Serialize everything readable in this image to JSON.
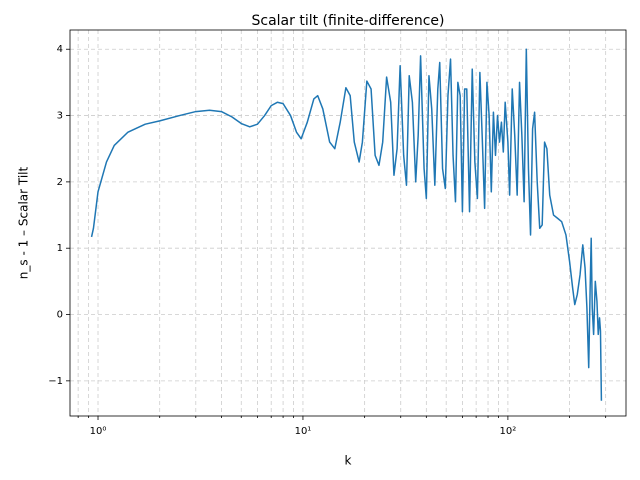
{
  "chart_data": {
    "type": "line",
    "title": "Scalar tilt (finite-difference)",
    "x_label": "k",
    "y_label": "n_s - 1 – Scalar Tilt",
    "xscale": "log",
    "grid": true,
    "color": "#1f77b4",
    "xlim": [
      0.73,
      377
    ],
    "ylim": [
      -1.53,
      4.29
    ],
    "xticks": [
      {
        "value": 1,
        "label": "10⁰"
      },
      {
        "value": 10,
        "label": "10¹"
      },
      {
        "value": 100,
        "label": "10²"
      }
    ],
    "xminorticks": [
      0.8,
      0.9,
      2,
      3,
      4,
      5,
      6,
      7,
      8,
      9,
      20,
      30,
      40,
      50,
      60,
      70,
      80,
      90,
      200,
      300
    ],
    "yticks": [
      {
        "value": -1,
        "label": "−1"
      },
      0,
      1,
      2,
      3,
      4
    ],
    "x": [
      0.93,
      0.95,
      1.0,
      1.1,
      1.2,
      1.4,
      1.7,
      2.0,
      2.5,
      3.0,
      3.5,
      4.0,
      4.5,
      5.0,
      5.5,
      6.0,
      6.5,
      7.0,
      7.5,
      8.0,
      8.7,
      9.3,
      9.8,
      10.5,
      11.3,
      11.8,
      12.5,
      13.5,
      14.3,
      15.2,
      16.2,
      17.0,
      17.8,
      18.8,
      19.5,
      20.5,
      21.5,
      22.5,
      23.5,
      24.5,
      25.6,
      26.8,
      27.8,
      28.8,
      29.8,
      31,
      32,
      33,
      34.2,
      35.5,
      36.5,
      37.5,
      39,
      40,
      41.2,
      42.5,
      44,
      45.5,
      46.5,
      48,
      49.5,
      51,
      52.5,
      54,
      55.5,
      57,
      58.5,
      60,
      61.5,
      63,
      65,
      67,
      69,
      71,
      73,
      75,
      77,
      79,
      81,
      83,
      85,
      87,
      89,
      91,
      93,
      95,
      97,
      100,
      102,
      105,
      108,
      111,
      114,
      117,
      120,
      123,
      126,
      129,
      132,
      135,
      139,
      143,
      147,
      151,
      155,
      160,
      167,
      175,
      183,
      192,
      200,
      207,
      212,
      218,
      225,
      232,
      238,
      243,
      248,
      252,
      255,
      258,
      262,
      267,
      272,
      276,
      280,
      283,
      286
    ],
    "values": [
      1.17,
      1.3,
      1.85,
      2.3,
      2.55,
      2.75,
      2.87,
      2.92,
      3.0,
      3.06,
      3.08,
      3.06,
      2.98,
      2.88,
      2.83,
      2.87,
      3.0,
      3.15,
      3.2,
      3.18,
      3.0,
      2.75,
      2.65,
      2.9,
      3.25,
      3.3,
      3.1,
      2.6,
      2.5,
      2.9,
      3.42,
      3.3,
      2.6,
      2.3,
      2.6,
      3.52,
      3.4,
      2.4,
      2.25,
      2.6,
      3.58,
      3.2,
      2.1,
      2.5,
      3.75,
      2.4,
      1.95,
      3.6,
      3.2,
      2.0,
      2.7,
      3.9,
      2.2,
      1.75,
      3.6,
      3.1,
      1.95,
      3.4,
      3.8,
      2.2,
      1.9,
      3.3,
      3.85,
      2.4,
      1.7,
      3.5,
      3.3,
      1.55,
      3.4,
      3.4,
      1.55,
      3.7,
      2.3,
      1.75,
      3.65,
      2.65,
      1.6,
      3.5,
      3.0,
      1.85,
      3.05,
      2.4,
      3.0,
      2.6,
      2.9,
      2.45,
      3.2,
      2.6,
      1.8,
      3.4,
      2.7,
      1.8,
      3.5,
      2.7,
      1.7,
      4.0,
      2.2,
      1.2,
      2.8,
      3.05,
      2.0,
      1.3,
      1.35,
      2.6,
      2.5,
      1.8,
      1.5,
      1.45,
      1.4,
      1.2,
      0.8,
      0.4,
      0.15,
      0.3,
      0.6,
      1.05,
      0.7,
      0.1,
      -0.8,
      0.4,
      1.15,
      0.1,
      -0.3,
      0.5,
      0.2,
      -0.3,
      -0.05,
      -0.25,
      -1.3
    ]
  }
}
